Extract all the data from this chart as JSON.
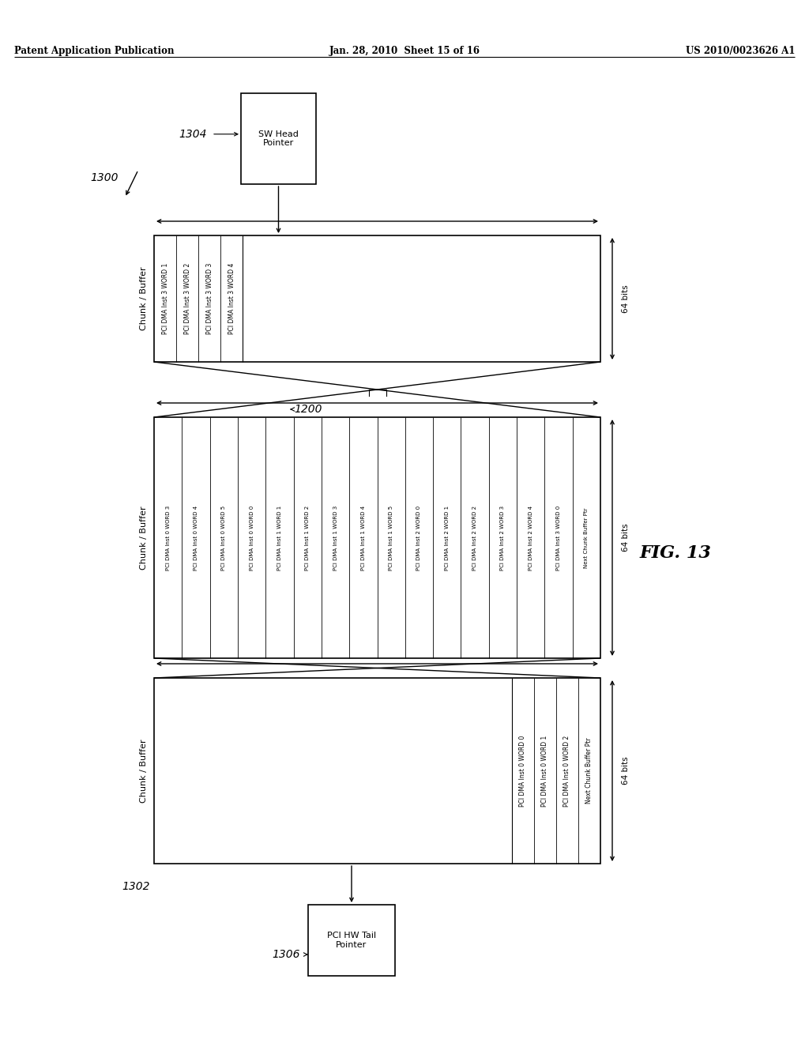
{
  "header_left": "Patent Application Publication",
  "header_center": "Jan. 28, 2010  Sheet 15 of 16",
  "header_right": "US 2010/0023626 A1",
  "fig_label": "FIG. 13",
  "bg_color": "#ffffff",
  "line_color": "#000000",
  "font_color": "#000000",
  "box_sw_label": "SW Head\nPointer",
  "box_sw_ref": "1304",
  "overall_ref": "1300",
  "box3_ref": "1302",
  "box_tail_label": "PCI HW Tail\nPointer",
  "box_tail_ref": "1306",
  "chunk_ref": "1200",
  "chunk1_rows": [
    "PCI DMA Inst 3 WORD 1",
    "PCI DMA Inst 3 WORD 2",
    "PCI DMA Inst 3 WORD 3",
    "PCI DMA Inst 3 WORD 4"
  ],
  "chunk2_rows": [
    "PCI DMA Inst 0 WORD 3",
    "PCI DMA Inst 0 WORD 4",
    "PCI DMA Inst 0 WORD 5",
    "PCI DMA Inst 0 WORD 0",
    "PCI DMA Inst 1 WORD 1",
    "PCI DMA Inst 1 WORD 2",
    "PCI DMA Inst 1 WORD 3",
    "PCI DMA Inst 1 WORD 4",
    "PCI DMA Inst 1 WORD 5",
    "PCI DMA Inst 2 WORD 0",
    "PCI DMA Inst 2 WORD 1",
    "PCI DMA Inst 2 WORD 2",
    "PCI DMA Inst 2 WORD 3",
    "PCI DMA Inst 2 WORD 4",
    "PCI DMA Inst 3 WORD 0",
    "Next Chunk Buffer Ptr"
  ],
  "chunk3_rows": [
    "PCI DMA Inst 0 WORD 0",
    "PCI DMA Inst 0 WORD 1",
    "PCI DMA Inst 0 WORD 2",
    "Next Chunk Buffer Ptr"
  ]
}
